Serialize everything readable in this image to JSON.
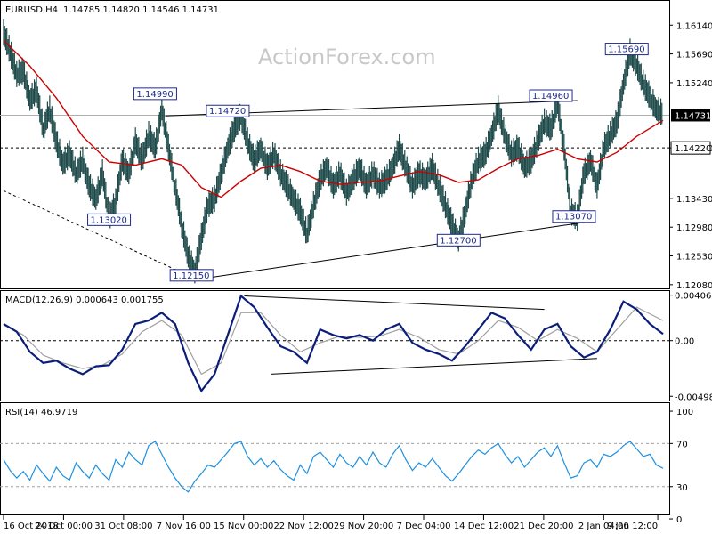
{
  "chart_data": {
    "type": "line",
    "symbol": "EURUSD,H4",
    "ohlc": "1.14785 1.14820 1.14546 1.14731",
    "watermark": "ActionForex.com",
    "price_axis": {
      "range": [
        1.1205,
        1.1645
      ],
      "ticks": [
        "1.16140",
        "1.15690",
        "1.15240",
        "1.14731",
        "1.14220",
        "1.13430",
        "1.12980",
        "1.12530",
        "1.12080"
      ],
      "current": "1.14731",
      "current_value": 1.14731,
      "hline_label": "1.14220",
      "hline_value": 1.1422
    },
    "x_ticks": [
      "16 Oct 2018",
      "24 Oct 00:00",
      "31 Oct 08:00",
      "7 Nov 16:00",
      "15 Nov 00:00",
      "22 Nov 12:00",
      "29 Nov 20:00",
      "7 Dec 04:00",
      "14 Dec 12:00",
      "21 Dec 20:00",
      "2 Jan 04:00",
      "9 Jan 12:00"
    ],
    "x_range": [
      0,
      100
    ],
    "x_tick_positions": [
      0,
      9.1,
      18.2,
      27.3,
      36.4,
      45.5,
      54.6,
      63.7,
      72.8,
      81.9,
      91,
      99.2
    ],
    "price_path": [
      [
        0,
        1.16
      ],
      [
        1,
        1.157
      ],
      [
        2,
        1.1535
      ],
      [
        3,
        1.154
      ],
      [
        4,
        1.1495
      ],
      [
        5,
        1.151
      ],
      [
        6,
        1.145
      ],
      [
        7,
        1.148
      ],
      [
        8,
        1.143
      ],
      [
        9,
        1.1395
      ],
      [
        10,
        1.141
      ],
      [
        11,
        1.138
      ],
      [
        12,
        1.14
      ],
      [
        13,
        1.136
      ],
      [
        14,
        1.134
      ],
      [
        15,
        1.138
      ],
      [
        16,
        1.131
      ],
      [
        17,
        1.1335
      ],
      [
        18,
        1.14
      ],
      [
        19,
        1.138
      ],
      [
        20,
        1.143
      ],
      [
        21,
        1.14
      ],
      [
        22,
        1.144
      ],
      [
        23,
        1.142
      ],
      [
        24,
        1.148
      ],
      [
        25,
        1.142
      ],
      [
        26,
        1.136
      ],
      [
        27,
        1.13
      ],
      [
        28,
        1.125
      ],
      [
        29,
        1.1225
      ],
      [
        30,
        1.128
      ],
      [
        31,
        1.133
      ],
      [
        32,
        1.134
      ],
      [
        33,
        1.138
      ],
      [
        34,
        1.142
      ],
      [
        35,
        1.145
      ],
      [
        36,
        1.147
      ],
      [
        37,
        1.143
      ],
      [
        38,
        1.14
      ],
      [
        39,
        1.142
      ],
      [
        40,
        1.139
      ],
      [
        41,
        1.141
      ],
      [
        42,
        1.138
      ],
      [
        43,
        1.136
      ],
      [
        44,
        1.134
      ],
      [
        45,
        1.132
      ],
      [
        46,
        1.1285
      ],
      [
        47,
        1.133
      ],
      [
        48,
        1.137
      ],
      [
        49,
        1.139
      ],
      [
        50,
        1.136
      ],
      [
        51,
        1.138
      ],
      [
        52,
        1.135
      ],
      [
        53,
        1.137
      ],
      [
        54,
        1.139
      ],
      [
        55,
        1.136
      ],
      [
        56,
        1.138
      ],
      [
        57,
        1.136
      ],
      [
        58,
        1.137
      ],
      [
        59,
        1.139
      ],
      [
        60,
        1.142
      ],
      [
        61,
        1.139
      ],
      [
        62,
        1.136
      ],
      [
        63,
        1.138
      ],
      [
        64,
        1.137
      ],
      [
        65,
        1.139
      ],
      [
        66,
        1.136
      ],
      [
        67,
        1.133
      ],
      [
        68,
        1.13
      ],
      [
        69,
        1.1275
      ],
      [
        70,
        1.132
      ],
      [
        71,
        1.137
      ],
      [
        72,
        1.14
      ],
      [
        73,
        1.141
      ],
      [
        74,
        1.144
      ],
      [
        75,
        1.148
      ],
      [
        76,
        1.144
      ],
      [
        77,
        1.141
      ],
      [
        78,
        1.142
      ],
      [
        79,
        1.139
      ],
      [
        80,
        1.14
      ],
      [
        81,
        1.143
      ],
      [
        82,
        1.146
      ],
      [
        83,
        1.145
      ],
      [
        84,
        1.149
      ],
      [
        85,
        1.142
      ],
      [
        86,
        1.132
      ],
      [
        87,
        1.131
      ],
      [
        88,
        1.138
      ],
      [
        89,
        1.14
      ],
      [
        90,
        1.136
      ],
      [
        91,
        1.142
      ],
      [
        92,
        1.144
      ],
      [
        93,
        1.146
      ],
      [
        94,
        1.152
      ],
      [
        95,
        1.1569
      ],
      [
        96,
        1.155
      ],
      [
        97,
        1.152
      ],
      [
        98,
        1.15
      ],
      [
        99,
        1.148
      ],
      [
        100,
        1.1473
      ]
    ],
    "ma_path": [
      [
        0,
        1.159
      ],
      [
        4,
        1.155
      ],
      [
        8,
        1.15
      ],
      [
        12,
        1.144
      ],
      [
        16,
        1.14
      ],
      [
        20,
        1.1395
      ],
      [
        24,
        1.1405
      ],
      [
        27,
        1.1395
      ],
      [
        30,
        1.136
      ],
      [
        33,
        1.1345
      ],
      [
        36,
        1.137
      ],
      [
        39,
        1.139
      ],
      [
        42,
        1.1395
      ],
      [
        45,
        1.1385
      ],
      [
        48,
        1.137
      ],
      [
        51,
        1.1365
      ],
      [
        54,
        1.1368
      ],
      [
        57,
        1.137
      ],
      [
        60,
        1.1378
      ],
      [
        63,
        1.1385
      ],
      [
        66,
        1.138
      ],
      [
        69,
        1.1368
      ],
      [
        72,
        1.1372
      ],
      [
        75,
        1.139
      ],
      [
        78,
        1.1405
      ],
      [
        81,
        1.141
      ],
      [
        84,
        1.142
      ],
      [
        87,
        1.1405
      ],
      [
        90,
        1.14
      ],
      [
        93,
        1.1415
      ],
      [
        96,
        1.144
      ],
      [
        100,
        1.1465
      ]
    ],
    "trendlines": [
      {
        "from": [
          0,
          1.1355
        ],
        "to": [
          28.5,
          1.122
        ],
        "style": "dashed"
      },
      {
        "from": [
          28.5,
          1.1215
        ],
        "to": [
          89,
          1.1307
        ],
        "style": "solid"
      },
      {
        "from": [
          24.5,
          1.1472
        ],
        "to": [
          87,
          1.1496
        ],
        "style": "solid"
      }
    ],
    "annotations": [
      {
        "text": "1.14990",
        "x": 23,
        "y": 1.1499
      },
      {
        "text": "1.14720",
        "x": 34,
        "y": 1.1472
      },
      {
        "text": "1.13020",
        "x": 16,
        "y": 1.1302
      },
      {
        "text": "1.12150",
        "x": 28.5,
        "y": 1.1215
      },
      {
        "text": "1.12700",
        "x": 69,
        "y": 1.127
      },
      {
        "text": "1.14960",
        "x": 83,
        "y": 1.1496
      },
      {
        "text": "1.13070",
        "x": 86.5,
        "y": 1.1307
      },
      {
        "text": "1.15690",
        "x": 94.5,
        "y": 1.1569
      }
    ],
    "macd": {
      "label": "MACD(12,26,9) 0.000643 0.001755",
      "range": [
        -0.0052,
        0.0042
      ],
      "ticks": [
        "0.004069",
        "0.00",
        "-0.004981"
      ],
      "tick_values": [
        0.004069,
        0,
        -0.004981
      ],
      "zero_label": "0.00",
      "macd_path": [
        [
          0,
          0.0015
        ],
        [
          2,
          0.0008
        ],
        [
          4,
          -0.001
        ],
        [
          6,
          -0.002
        ],
        [
          8,
          -0.0018
        ],
        [
          10,
          -0.0025
        ],
        [
          12,
          -0.003
        ],
        [
          14,
          -0.0023
        ],
        [
          16,
          -0.0022
        ],
        [
          18,
          -0.0008
        ],
        [
          20,
          0.0015
        ],
        [
          22,
          0.0018
        ],
        [
          24,
          0.0025
        ],
        [
          26,
          0.0015
        ],
        [
          28,
          -0.002
        ],
        [
          30,
          -0.0045
        ],
        [
          32,
          -0.003
        ],
        [
          34,
          0.0005
        ],
        [
          36,
          0.004
        ],
        [
          38,
          0.003
        ],
        [
          40,
          0.0012
        ],
        [
          42,
          -0.0005
        ],
        [
          44,
          -0.001
        ],
        [
          46,
          -0.002
        ],
        [
          48,
          0.001
        ],
        [
          50,
          0.0005
        ],
        [
          52,
          0.0002
        ],
        [
          54,
          0.0005
        ],
        [
          56,
          0.0
        ],
        [
          58,
          0.001
        ],
        [
          60,
          0.0015
        ],
        [
          62,
          -0.0002
        ],
        [
          64,
          -0.0008
        ],
        [
          66,
          -0.0012
        ],
        [
          68,
          -0.0018
        ],
        [
          70,
          -0.0005
        ],
        [
          72,
          0.001
        ],
        [
          74,
          0.0025
        ],
        [
          76,
          0.002
        ],
        [
          78,
          0.0005
        ],
        [
          80,
          -0.0008
        ],
        [
          82,
          0.001
        ],
        [
          84,
          0.0015
        ],
        [
          86,
          -0.0005
        ],
        [
          88,
          -0.0015
        ],
        [
          90,
          -0.001
        ],
        [
          92,
          0.001
        ],
        [
          94,
          0.0035
        ],
        [
          96,
          0.0028
        ],
        [
          98,
          0.0015
        ],
        [
          100,
          0.0006
        ]
      ],
      "signal_path": [
        [
          0,
          0.0014
        ],
        [
          3,
          0.0005
        ],
        [
          6,
          -0.0013
        ],
        [
          9,
          -0.002
        ],
        [
          12,
          -0.0025
        ],
        [
          15,
          -0.0022
        ],
        [
          18,
          -0.0012
        ],
        [
          21,
          0.0008
        ],
        [
          24,
          0.0018
        ],
        [
          27,
          0.0005
        ],
        [
          30,
          -0.003
        ],
        [
          33,
          -0.002
        ],
        [
          36,
          0.0025
        ],
        [
          39,
          0.0025
        ],
        [
          42,
          0.0005
        ],
        [
          45,
          -0.001
        ],
        [
          48,
          -0.0002
        ],
        [
          51,
          0.0004
        ],
        [
          54,
          0.0003
        ],
        [
          57,
          0.0004
        ],
        [
          60,
          0.001
        ],
        [
          63,
          0.0003
        ],
        [
          66,
          -0.0008
        ],
        [
          69,
          -0.0012
        ],
        [
          72,
          0.0
        ],
        [
          75,
          0.0018
        ],
        [
          78,
          0.0012
        ],
        [
          81,
          0.0
        ],
        [
          84,
          0.001
        ],
        [
          87,
          0.0002
        ],
        [
          90,
          -0.001
        ],
        [
          93,
          0.001
        ],
        [
          96,
          0.003
        ],
        [
          100,
          0.0018
        ]
      ],
      "trendlines": [
        {
          "from": [
            36.5,
            0.004
          ],
          "to": [
            82,
            0.0028
          ]
        },
        {
          "from": [
            40.5,
            -0.003
          ],
          "to": [
            90,
            -0.0016
          ]
        }
      ]
    },
    "rsi": {
      "label": "RSI(14) 46.9719",
      "range": [
        5,
        105
      ],
      "ticks": [
        "100",
        "70",
        "30",
        "0"
      ],
      "tick_values": [
        100,
        70,
        30,
        0
      ],
      "levels": [
        70,
        30
      ],
      "rsi_path": [
        [
          0,
          55
        ],
        [
          1,
          45
        ],
        [
          2,
          38
        ],
        [
          3,
          44
        ],
        [
          4,
          36
        ],
        [
          5,
          50
        ],
        [
          6,
          42
        ],
        [
          7,
          35
        ],
        [
          8,
          48
        ],
        [
          9,
          40
        ],
        [
          10,
          36
        ],
        [
          11,
          52
        ],
        [
          12,
          44
        ],
        [
          13,
          38
        ],
        [
          14,
          50
        ],
        [
          15,
          42
        ],
        [
          16,
          36
        ],
        [
          17,
          55
        ],
        [
          18,
          48
        ],
        [
          19,
          62
        ],
        [
          20,
          55
        ],
        [
          21,
          50
        ],
        [
          22,
          68
        ],
        [
          23,
          72
        ],
        [
          24,
          60
        ],
        [
          25,
          48
        ],
        [
          26,
          38
        ],
        [
          27,
          30
        ],
        [
          28,
          25
        ],
        [
          29,
          35
        ],
        [
          30,
          42
        ],
        [
          31,
          50
        ],
        [
          32,
          48
        ],
        [
          33,
          55
        ],
        [
          34,
          62
        ],
        [
          35,
          70
        ],
        [
          36,
          72
        ],
        [
          37,
          58
        ],
        [
          38,
          50
        ],
        [
          39,
          56
        ],
        [
          40,
          48
        ],
        [
          41,
          54
        ],
        [
          42,
          46
        ],
        [
          43,
          40
        ],
        [
          44,
          36
        ],
        [
          45,
          50
        ],
        [
          46,
          42
        ],
        [
          47,
          58
        ],
        [
          48,
          62
        ],
        [
          49,
          55
        ],
        [
          50,
          48
        ],
        [
          51,
          60
        ],
        [
          52,
          52
        ],
        [
          53,
          48
        ],
        [
          54,
          58
        ],
        [
          55,
          50
        ],
        [
          56,
          62
        ],
        [
          57,
          52
        ],
        [
          58,
          48
        ],
        [
          59,
          60
        ],
        [
          60,
          68
        ],
        [
          61,
          55
        ],
        [
          62,
          45
        ],
        [
          63,
          52
        ],
        [
          64,
          48
        ],
        [
          65,
          56
        ],
        [
          66,
          48
        ],
        [
          67,
          40
        ],
        [
          68,
          35
        ],
        [
          69,
          42
        ],
        [
          70,
          50
        ],
        [
          71,
          58
        ],
        [
          72,
          64
        ],
        [
          73,
          60
        ],
        [
          74,
          66
        ],
        [
          75,
          70
        ],
        [
          76,
          60
        ],
        [
          77,
          52
        ],
        [
          78,
          58
        ],
        [
          79,
          48
        ],
        [
          80,
          55
        ],
        [
          81,
          62
        ],
        [
          82,
          66
        ],
        [
          83,
          58
        ],
        [
          84,
          68
        ],
        [
          85,
          52
        ],
        [
          86,
          38
        ],
        [
          87,
          40
        ],
        [
          88,
          52
        ],
        [
          89,
          55
        ],
        [
          90,
          48
        ],
        [
          91,
          60
        ],
        [
          92,
          58
        ],
        [
          93,
          62
        ],
        [
          94,
          68
        ],
        [
          95,
          72
        ],
        [
          96,
          65
        ],
        [
          97,
          58
        ],
        [
          98,
          60
        ],
        [
          99,
          50
        ],
        [
          100,
          47
        ]
      ]
    },
    "colors": {
      "candles": "#1e4a4a",
      "ma": "#cc0000",
      "macd": "#0a1e7a",
      "signal": "#a0a0a0",
      "rsi": "#1e90e0",
      "annotation_border": "#1e2a8a",
      "current_box": "#000000"
    }
  }
}
